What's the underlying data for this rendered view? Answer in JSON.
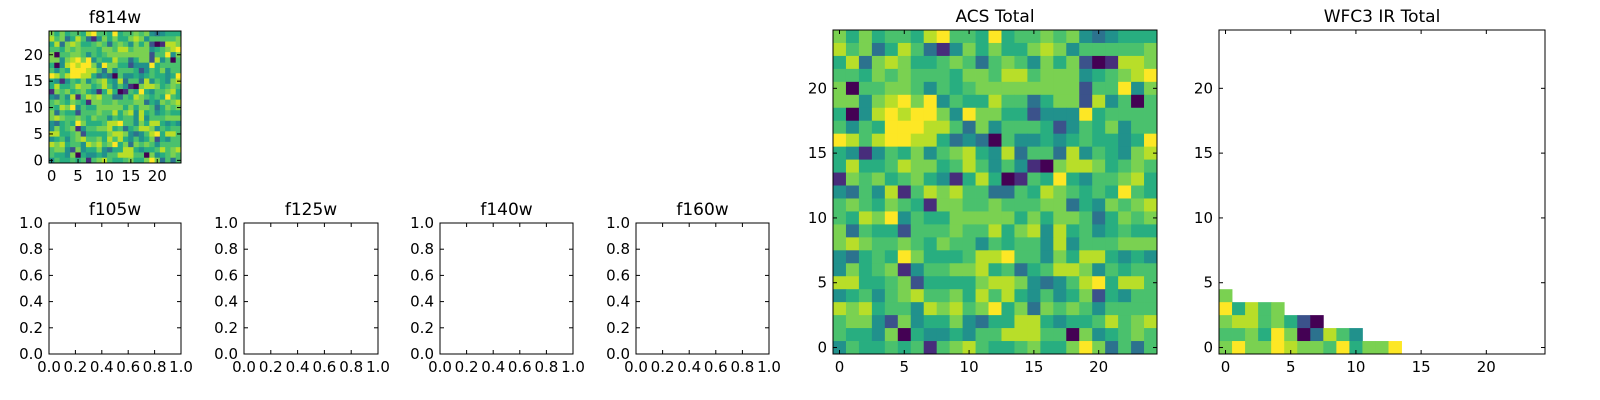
{
  "chart_data": [
    {
      "type": "heatmap",
      "title": "f814w",
      "grid_ref": "acs",
      "xlim": [
        -0.5,
        24.5
      ],
      "ylim": [
        -0.5,
        24.5
      ],
      "xticks": [
        "0",
        "5",
        "10",
        "15",
        "20"
      ],
      "yticks": [
        "0",
        "5",
        "10",
        "15",
        "20"
      ],
      "colormap": "viridis"
    },
    {
      "type": "heatmap",
      "title": "f105w",
      "empty": true,
      "xlim": [
        0,
        1
      ],
      "ylim": [
        0,
        1
      ],
      "xticks": [
        "0.0",
        "0.2",
        "0.4",
        "0.6",
        "0.8",
        "1.0"
      ],
      "yticks": [
        "0.0",
        "0.2",
        "0.4",
        "0.6",
        "0.8",
        "1.0"
      ]
    },
    {
      "type": "heatmap",
      "title": "f125w",
      "empty": true,
      "xlim": [
        0,
        1
      ],
      "ylim": [
        0,
        1
      ],
      "xticks": [
        "0.0",
        "0.2",
        "0.4",
        "0.6",
        "0.8",
        "1.0"
      ],
      "yticks": [
        "0.0",
        "0.2",
        "0.4",
        "0.6",
        "0.8",
        "1.0"
      ]
    },
    {
      "type": "heatmap",
      "title": "f140w",
      "empty": true,
      "xlim": [
        0,
        1
      ],
      "ylim": [
        0,
        1
      ],
      "xticks": [
        "0.0",
        "0.2",
        "0.4",
        "0.6",
        "0.8",
        "1.0"
      ],
      "yticks": [
        "0.0",
        "0.2",
        "0.4",
        "0.6",
        "0.8",
        "1.0"
      ]
    },
    {
      "type": "heatmap",
      "title": "f160w",
      "empty": true,
      "xlim": [
        0,
        1
      ],
      "ylim": [
        0,
        1
      ],
      "xticks": [
        "0.0",
        "0.2",
        "0.4",
        "0.6",
        "0.8",
        "1.0"
      ],
      "yticks": [
        "0.0",
        "0.2",
        "0.4",
        "0.6",
        "0.8",
        "1.0"
      ]
    },
    {
      "type": "heatmap",
      "title": "ACS Total",
      "grid_ref": "acs",
      "xlim": [
        -0.5,
        24.5
      ],
      "ylim": [
        -0.5,
        24.5
      ],
      "xticks": [
        "0",
        "5",
        "10",
        "15",
        "20"
      ],
      "yticks": [
        "0",
        "5",
        "10",
        "15",
        "20"
      ],
      "colormap": "viridis"
    },
    {
      "type": "heatmap",
      "title": "WFC3 IR Total",
      "grid_ref": "wfc3",
      "xlim": [
        -0.5,
        24.5
      ],
      "ylim": [
        -0.5,
        24.5
      ],
      "xticks": [
        "0",
        "5",
        "10",
        "15",
        "20"
      ],
      "yticks": [
        "0",
        "5",
        "10",
        "15",
        "20"
      ],
      "colormap": "viridis"
    }
  ],
  "grids": {
    "note_levels": "relative intensity levels 0 (low) - 9 (high); rows listed from y=24 down to y=0; '.' = no data",
    "acs": [
      "7575665896659566767434555",
      "8673586314757557874666667",
      "5837875567636764757201887",
      "6657676665776886777456789",
      "7066776465677777777266947",
      "7747897946558663577284606",
      "5048989974977552444956666",
      "6465999886374666524657466",
      "9868998853430644545655459",
      "5414657467854836638465478",
      "5855687756864641078875676",
      "1767567541585016595466785",
      "4364816878663365876565965",
      "6765765177667666773547678",
      "6587946557777757577635767",
      "7365526667668578485645655",
      "7876676576646566484666777",
      "4356597555688966475885454",
      "4756714667785635688746566",
      "8855672555578874346895886",
      "4564678667586854645725466",
      "8785664878679573767646666",
      "6774274557435588545568678",
      "6554705445466888660745676",
      "4655656167865567557973636"
    ],
    "wfc3": [
      ".........................",
      ".........................",
      ".........................",
      ".........................",
      ".........................",
      ".........................",
      ".........................",
      ".........................",
      ".........................",
      ".........................",
      ".........................",
      ".........................",
      ".........................",
      ".........................",
      ".........................",
      ".........................",
      ".........................",
      ".........................",
      ".........................",
      ".........................",
      "7........................",
      "95867....................",
      "78867520.................",
      "66759703864..............",
      "79779877695779..........."
    ]
  },
  "colors": {
    "viridis": [
      "#440154",
      "#472d7b",
      "#3b528b",
      "#2c728e",
      "#21918c",
      "#28ae80",
      "#4ac16d",
      "#7ad151",
      "#b8de29",
      "#fde725"
    ]
  }
}
